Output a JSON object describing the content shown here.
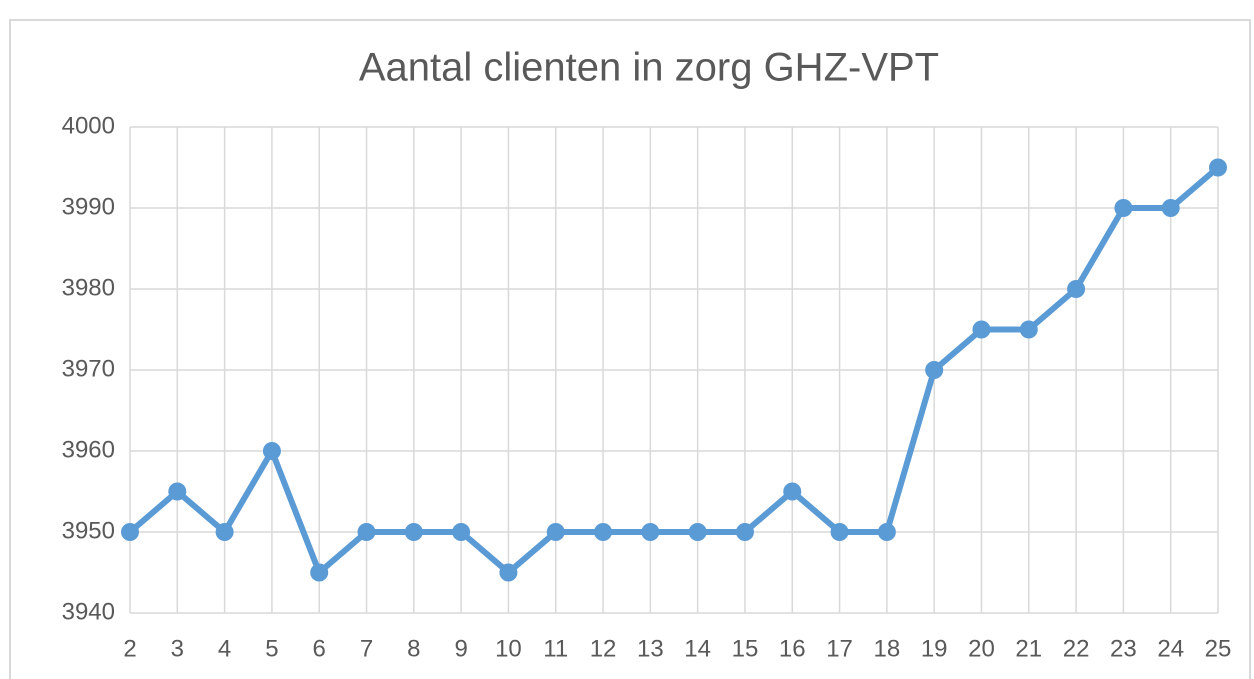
{
  "chart_data": {
    "type": "line",
    "title": "Aantal clienten in zorg GHZ-VPT",
    "categories": [
      "2",
      "3",
      "4",
      "5",
      "6",
      "7",
      "8",
      "9",
      "10",
      "11",
      "12",
      "13",
      "14",
      "15",
      "16",
      "17",
      "18",
      "19",
      "20",
      "21",
      "22",
      "23",
      "24",
      "25"
    ],
    "series": [
      {
        "name": "Aantal clienten",
        "color": "#5b9bd5",
        "values": [
          3950,
          3955,
          3950,
          3960,
          3945,
          3950,
          3950,
          3950,
          3945,
          3950,
          3950,
          3950,
          3950,
          3950,
          3955,
          3950,
          3950,
          3970,
          3975,
          3975,
          3980,
          3990,
          3990,
          3995
        ]
      }
    ],
    "ylim": [
      3940,
      4000
    ],
    "yticks": [
      3940,
      3950,
      3960,
      3970,
      3980,
      3990,
      4000
    ],
    "grid": true
  }
}
